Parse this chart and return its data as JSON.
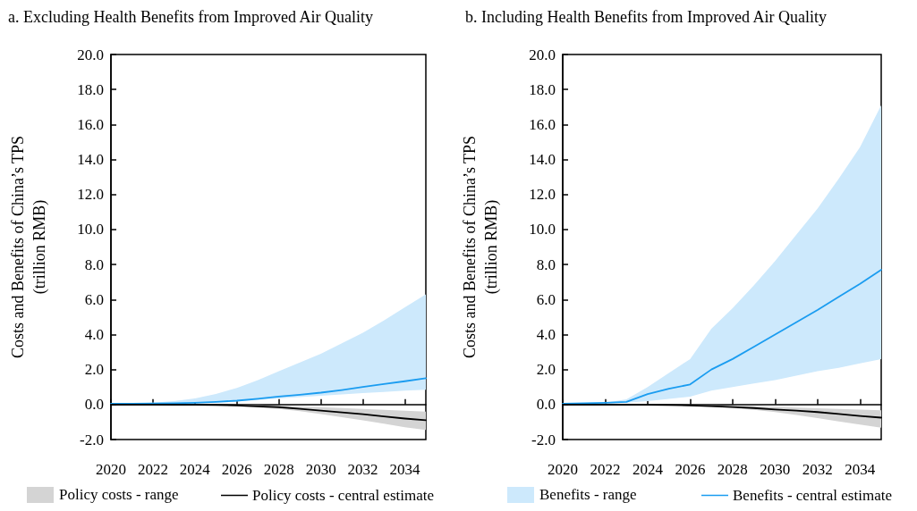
{
  "chart_data": [
    {
      "type": "line",
      "title": "a. Excluding Health Benefits from Improved Air Quality",
      "ylabel": "Costs and Benefits of China’s TPS\n(trillion RMB)",
      "annotations": [
        "Policy costs - range"
      ],
      "x": [
        2020,
        2021,
        2022,
        2023,
        2024,
        2025,
        2026,
        2027,
        2028,
        2029,
        2030,
        2031,
        2032,
        2033,
        2034,
        2035
      ],
      "series": [
        {
          "color": "#1a9cf0",
          "values": [
            0.05,
            0.05,
            0.06,
            0.07,
            0.1,
            0.15,
            0.22,
            0.33,
            0.46,
            0.56,
            0.68,
            0.83,
            1.0,
            1.17,
            1.33,
            1.5
          ],
          "lower": [
            0.05,
            0.05,
            0.05,
            0.05,
            0.08,
            0.12,
            0.18,
            0.26,
            0.35,
            0.43,
            0.5,
            0.58,
            0.65,
            0.72,
            0.8,
            0.85
          ],
          "upper": [
            0.05,
            0.07,
            0.1,
            0.2,
            0.35,
            0.6,
            0.95,
            1.4,
            1.9,
            2.4,
            2.9,
            3.5,
            4.1,
            4.8,
            5.55,
            6.3
          ]
        },
        {
          "name": "Policy costs - central estimate",
          "color": "#000000",
          "values": [
            0,
            0,
            0,
            -0.01,
            -0.02,
            -0.03,
            -0.05,
            -0.1,
            -0.15,
            -0.25,
            -0.35,
            -0.45,
            -0.55,
            -0.68,
            -0.8,
            -0.9
          ],
          "lower": [
            0,
            0,
            0,
            -0.01,
            -0.03,
            -0.06,
            -0.1,
            -0.17,
            -0.25,
            -0.38,
            -0.55,
            -0.72,
            -0.9,
            -1.1,
            -1.3,
            -1.45
          ],
          "upper": [
            0,
            0,
            0,
            0,
            -0.01,
            -0.02,
            -0.03,
            -0.05,
            -0.08,
            -0.11,
            -0.15,
            -0.2,
            -0.25,
            -0.3,
            -0.35,
            -0.4
          ]
        }
      ],
      "xlim": [
        2020,
        2035
      ],
      "xticks": [
        2020,
        2022,
        2024,
        2026,
        2028,
        2030,
        2032,
        2034
      ],
      "ylim": [
        -2,
        20
      ],
      "yticks": [
        {
          "value": -2,
          "label": "-2.0"
        },
        {
          "value": 0,
          "label": "0.0"
        },
        {
          "value": 2,
          "label": "2.0"
        },
        {
          "value": 4,
          "label": "4.0"
        },
        {
          "value": 6,
          "label": "6.0"
        },
        {
          "value": 8,
          "label": "8.0"
        },
        {
          "value": 10,
          "label": "10.0"
        },
        {
          "value": 12,
          "label": "12.0"
        },
        {
          "value": 14,
          "label": "14.0"
        },
        {
          "value": 16,
          "label": "16.0"
        },
        {
          "value": 18,
          "label": "18.0"
        },
        {
          "value": 20,
          "label": "20.0"
        }
      ],
      "legend": "bottom",
      "marker": "none"
    },
    {
      "type": "line",
      "title": "b. Including Health Benefits from Improved Air Quality",
      "ylabel": "Costs and Benefits of China’s TPS\n(trillion RMB)",
      "annotations": [
        "Benefits - range"
      ],
      "x": [
        2020,
        2021,
        2022,
        2023,
        2024,
        2025,
        2026,
        2027,
        2028,
        2029,
        2030,
        2031,
        2032,
        2033,
        2034,
        2035
      ],
      "series": [
        {
          "name": "Benefits - central estimate",
          "color": "#1a9cf0",
          "values": [
            0.05,
            0.07,
            0.1,
            0.15,
            0.6,
            0.9,
            1.15,
            2.0,
            2.6,
            3.3,
            4.0,
            4.7,
            5.4,
            6.15,
            6.9,
            7.7
          ],
          "lower": [
            0.05,
            0.05,
            0.07,
            0.1,
            0.2,
            0.32,
            0.45,
            0.8,
            1.0,
            1.2,
            1.4,
            1.65,
            1.9,
            2.1,
            2.35,
            2.6
          ],
          "upper": [
            0.05,
            0.07,
            0.1,
            0.3,
            1.0,
            1.8,
            2.6,
            4.33,
            5.5,
            6.8,
            8.2,
            9.7,
            11.2,
            12.9,
            14.7,
            17.1
          ]
        },
        {
          "color": "#000000",
          "values": [
            0,
            0,
            0,
            -0.01,
            -0.02,
            -0.03,
            -0.05,
            -0.09,
            -0.14,
            -0.2,
            -0.28,
            -0.35,
            -0.43,
            -0.54,
            -0.65,
            -0.75
          ],
          "lower": [
            0,
            0,
            0,
            -0.01,
            -0.03,
            -0.05,
            -0.08,
            -0.14,
            -0.2,
            -0.3,
            -0.43,
            -0.6,
            -0.78,
            -0.97,
            -1.15,
            -1.33
          ],
          "upper": [
            0,
            0,
            0,
            0,
            -0.01,
            -0.02,
            -0.03,
            -0.05,
            -0.07,
            -0.1,
            -0.13,
            -0.17,
            -0.21,
            -0.25,
            -0.29,
            -0.33
          ]
        }
      ],
      "xlim": [
        2020,
        2035
      ],
      "xticks": [
        2020,
        2022,
        2024,
        2026,
        2028,
        2030,
        2032,
        2034
      ],
      "ylim": [
        -2,
        20
      ],
      "yticks": [
        {
          "value": -2,
          "label": "-2.0"
        },
        {
          "value": 0,
          "label": "0.0"
        },
        {
          "value": 2,
          "label": "2.0"
        },
        {
          "value": 4,
          "label": "4.0"
        },
        {
          "value": 6,
          "label": "6.0"
        },
        {
          "value": 8,
          "label": "8.0"
        },
        {
          "value": 10,
          "label": "10.0"
        },
        {
          "value": 12,
          "label": "12.0"
        },
        {
          "value": 14,
          "label": "14.0"
        },
        {
          "value": 16,
          "label": "16.0"
        },
        {
          "value": 18,
          "label": "18.0"
        },
        {
          "value": 20,
          "label": "20.0"
        }
      ],
      "legend": "bottom",
      "marker": "none"
    }
  ]
}
